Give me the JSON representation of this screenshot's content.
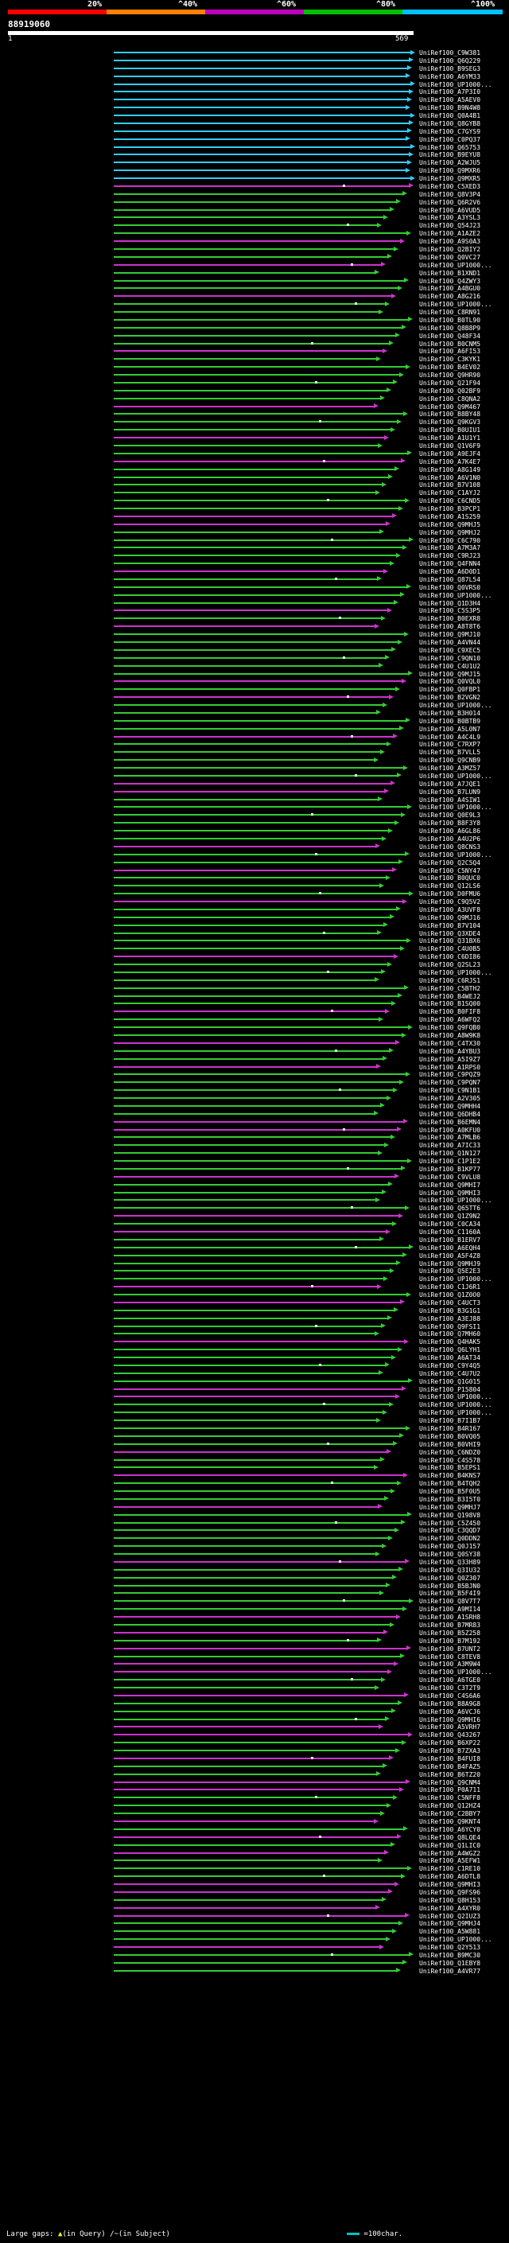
{
  "header": {
    "percent_labels": [
      "20%",
      "^40%",
      "^60%",
      "^80%",
      "^100%"
    ],
    "query_id": "88919060",
    "scale_start": "1",
    "scale_end": "569"
  },
  "colors": {
    "bar_red": "#ff0000",
    "bar_orange": "#ff8000",
    "bar_purple": "#c000c0",
    "bar_green": "#00c000",
    "bar_cyan": "#00c0ff",
    "hit_cyan": "#33ccff",
    "hit_green": "#33cc33",
    "hit_magenta": "#cc33cc"
  },
  "footer": {
    "large_gaps_label": "Large gaps:",
    "query_gap_label": "(in Query)",
    "subject_gap_label": "(in Subject)",
    "scale_label": "=100char."
  },
  "hits": [
    "UniRef100_C9W381",
    "UniRef100_Q6Q229",
    "UniRef100_B9SEG3",
    "UniRef100_A6YM33",
    "UniRef100_UP1000...",
    "UniRef100_A7P3I0",
    "UniRef100_A5AEV0",
    "UniRef100_B9N4W8",
    "UniRef100_Q0A4B1",
    "UniRef100_Q8GYB8",
    "UniRef100_C7GYS9",
    "UniRef100_C0PQ37",
    "UniRef100_Q65753",
    "UniRef100_B9EYU8",
    "UniRef100_A2WJU5",
    "UniRef100_Q9MXR6",
    "UniRef100_Q9MXR5",
    "UniRef100_C5XED3",
    "UniRef100_Q8V3P4",
    "UniRef100_Q6R2V6",
    "UniRef100_A6VUD5",
    "UniRef100_A3YSL3",
    "UniRef100_Q54J23",
    "UniRef100_A1AZE2",
    "UniRef100_A9S0A3",
    "UniRef100_Q2BIY2",
    "UniRef100_Q0VC27",
    "UniRef100_UP1000...",
    "UniRef100_B1XND1",
    "UniRef100_Q4ZWY3",
    "UniRef100_A4BGU0",
    "UniRef100_A8G216",
    "UniRef100_UP1000...",
    "UniRef100_C8RN91",
    "UniRef100_B0TL90",
    "UniRef100_Q8B8P9",
    "UniRef100_Q48F34",
    "UniRef100_B0CNM5",
    "UniRef100_A6FI53",
    "UniRef100_C3KYK1",
    "UniRef100_B4EV02",
    "UniRef100_Q9HR90",
    "UniRef100_Q21F94",
    "UniRef100_Q02BF9",
    "UniRef100_C8QNA2",
    "UniRef100_Q9M467",
    "UniRef100_B8BY48",
    "UniRef100_Q9KGV3",
    "UniRef100_B0UIU1",
    "UniRef100_A1U1Y1",
    "UniRef100_Q1V6F9",
    "UniRef100_A9EJF4",
    "UniRef100_A7K4E7",
    "UniRef100_A8G149",
    "UniRef100_A6V1N0",
    "UniRef100_B7V108",
    "UniRef100_C1AYJ2",
    "UniRef100_C6CND5",
    "UniRef100_B3PCP1",
    "UniRef100_A1S259",
    "UniRef100_Q9MHJ5",
    "UniRef100_Q9MHJ2",
    "UniRef100_C6C790",
    "UniRef100_A7M3A7",
    "UniRef100_C9RJ23",
    "UniRef100_Q4FNN4",
    "UniRef100_A6D0D1",
    "UniRef100_Q87L54",
    "UniRef100_Q0VRS0",
    "UniRef100_UP1000...",
    "UniRef100_Q1D3H4",
    "UniRef100_C5S3P5",
    "UniRef100_B0EXR8",
    "UniRef100_A8T8T6",
    "UniRef100_Q9MJ10",
    "UniRef100_A4VN44",
    "UniRef100_C9XEC5",
    "UniRef100_C9QN10",
    "UniRef100_C4U1U2",
    "UniRef100_Q9MJ15",
    "UniRef100_Q0VQL0",
    "UniRef100_Q0FBP1",
    "UniRef100_B2VGN2",
    "UniRef100_UP1000...",
    "UniRef100_B3H014",
    "UniRef100_B0BTB9",
    "UniRef100_A5L0N7",
    "UniRef100_A4C4L9",
    "UniRef100_C7RXP7",
    "UniRef100_B7VLL5",
    "UniRef100_Q9CNB9",
    "UniRef100_A3MZ57",
    "UniRef100_UP1000...",
    "UniRef100_A7JQE1",
    "UniRef100_B7LUN9",
    "UniRef100_A4SIW1",
    "UniRef100_UP1000...",
    "UniRef100_Q0E9L3",
    "UniRef100_B8F3Y8",
    "UniRef100_A6GL86",
    "UniRef100_A4U2P6",
    "UniRef100_Q8CNS3",
    "UniRef100_UP1000...",
    "UniRef100_Q2C5Q4",
    "UniRef100_C5NY47",
    "UniRef100_B0QUC0",
    "UniRef100_Q12LS6",
    "UniRef100_D0FMU6",
    "UniRef100_C9Q5V2",
    "UniRef100_A3UVF8",
    "UniRef100_Q9MJ16",
    "UniRef100_B7V104",
    "UniRef100_Q3XDE4",
    "UniRef100_Q31BX6",
    "UniRef100_C4U0B5",
    "UniRef100_C6DI86",
    "UniRef100_Q2SL23",
    "UniRef100_UP1000...",
    "UniRef100_C6RJS1",
    "UniRef100_C5BTH2",
    "UniRef100_B4WEJ2",
    "UniRef100_B1SQ00",
    "UniRef100_B0FIF8",
    "UniRef100_A6WFQ2",
    "UniRef100_Q9FQB0",
    "UniRef100_A8W9K8",
    "UniRef100_C4TX30",
    "UniRef100_A4YBU3",
    "UniRef100_A5I9Z7",
    "UniRef100_A1RPS0",
    "UniRef100_C9PQZ9",
    "UniRef100_C9PQN7",
    "UniRef100_C9N1B1",
    "UniRef100_A2V305",
    "UniRef100_Q9MHH4",
    "UniRef100_Q6DHB4",
    "UniRef100_B6EMN4",
    "UniRef100_A0KFU0",
    "UniRef100_A7MLB6",
    "UniRef100_A7IC33",
    "UniRef100_Q1N127",
    "UniRef100_C1P1E2",
    "UniRef100_B1KP77",
    "UniRef100_C9VLU8",
    "UniRef100_Q9MHI7",
    "UniRef100_Q9MHI3",
    "UniRef100_UP1000...",
    "UniRef100_Q65TT6",
    "UniRef100_Q1Z9N2",
    "UniRef100_C0CA34",
    "UniRef100_C1160A",
    "UniRef100_B1ERV7",
    "UniRef100_A6EQH4",
    "UniRef100_A5F4Z8",
    "UniRef100_Q9MHJ9",
    "UniRef100_Q5E2E3",
    "UniRef100_UP1000...",
    "UniRef100_C1J6R1",
    "UniRef100_Q1Z0O0",
    "UniRef100_C4UCT3",
    "UniRef100_B3G1G1",
    "UniRef100_A3EJ88",
    "UniRef100_Q9FSI1",
    "UniRef100_Q7MH60",
    "UniRef100_Q4HAK5",
    "UniRef100_Q6LYH1",
    "UniRef100_A6AT34",
    "UniRef100_C9Y4Q5",
    "UniRef100_C4U7U2",
    "UniRef100_Q1G015",
    "UniRef100_P15804",
    "UniRef100_UP1000...",
    "UniRef100_UP1000...",
    "UniRef100_UP1000...",
    "UniRef100_B7I1B7",
    "UniRef100_B4R167",
    "UniRef100_B0VQ05",
    "UniRef100_B0VHI9",
    "UniRef100_C6NDZ0",
    "UniRef100_C4S578",
    "UniRef100_B5EPS1",
    "UniRef100_B4KNS7",
    "UniRef100_B4TQH2",
    "UniRef100_B5F0U5",
    "UniRef100_B3I5T0",
    "UniRef100_Q9MHJ7",
    "UniRef100_Q198V8",
    "UniRef100_C5Z450",
    "UniRef100_C3QQD7",
    "UniRef100_Q0DDN2",
    "UniRef100_Q0J157",
    "UniRef100_Q0SY38",
    "UniRef100_Q33H89",
    "UniRef100_Q3IU32",
    "UniRef100_Q0Z307",
    "UniRef100_B5BJN0",
    "UniRef100_B5F4I9",
    "UniRef100_Q8V7T7",
    "UniRef100_A9MI14",
    "UniRef100_A1SRH8",
    "UniRef100_B7MR83",
    "UniRef100_B5Z258",
    "UniRef100_B7M192",
    "UniRef100_B7UNT2",
    "UniRef100_C8TEV8",
    "UniRef100_A3M9W4",
    "UniRef100_UP1000...",
    "UniRef100_A6TGE0",
    "UniRef100_C3T2T9",
    "UniRef100_C4S6A6",
    "UniRef100_B8A9G8",
    "UniRef100_A6VCJ6",
    "UniRef100_Q9MHI6",
    "UniRef100_A5VRH7",
    "UniRef100_Q43267",
    "UniRef100_B6XP22",
    "UniRef100_B7ZXA3",
    "UniRef100_B4FUI8",
    "UniRef100_B4FAZ5",
    "UniRef100_B6TZ20",
    "UniRef100_Q9CNM4",
    "UniRef100_P0A711",
    "UniRef100_C5NFF8",
    "UniRef100_Q12HZ4",
    "UniRef100_C2BBY7",
    "UniRef100_Q9KNT4",
    "UniRef100_A6YCY0",
    "UniRef100_Q8LQE4",
    "UniRef100_Q1LIC0",
    "UniRef100_A4WGZ2",
    "UniRef100_A5EFW1",
    "UniRef100_C1RE10",
    "UniRef100_A6DTL8",
    "UniRef100_Q9MHI3",
    "UniRef100_Q9FS96",
    "UniRef100_Q8H153",
    "UniRef100_A4XYR0",
    "UniRef100_Q2IUZ3",
    "UniRef100_Q9MHJ4",
    "UniRef100_A5W881",
    "UniRef100_UP1000...",
    "UniRef100_Q2Y513",
    "UniRef100_B9MC30",
    "UniRef100_Q1EBY8",
    "UniRef100_A4VR77"
  ]
}
